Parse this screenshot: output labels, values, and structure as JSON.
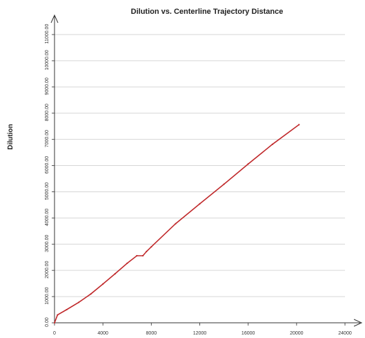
{
  "chart_data": {
    "type": "line",
    "title": "Dilution vs. Centerline Trajectory Distance",
    "xlabel": "",
    "ylabel": "Dilution",
    "xlim": [
      0,
      24000
    ],
    "ylim": [
      0,
      11000
    ],
    "x_ticks": [
      "0",
      "4000",
      "8000",
      "12000",
      "16000",
      "20000",
      "24000"
    ],
    "y_ticks": [
      "0.00",
      "1000.00",
      "2000.00",
      "3000.00",
      "4000.00",
      "5000.00",
      "6000.00",
      "7000.00",
      "8000.00",
      "9000.00",
      "10000.00",
      "11000.00"
    ],
    "grid": "horizontal",
    "color": "#c0292b",
    "series": [
      {
        "x": [
          0,
          250,
          1000,
          2000,
          3000,
          4000,
          5000,
          6000,
          6800,
          7300,
          7600,
          8000,
          10000,
          12000,
          14000,
          16000,
          18000,
          20200
        ],
        "y": [
          0,
          300,
          500,
          780,
          1100,
          1480,
          1870,
          2270,
          2560,
          2560,
          2720,
          2900,
          3780,
          4540,
          5290,
          6060,
          6810,
          7560
        ]
      }
    ]
  }
}
